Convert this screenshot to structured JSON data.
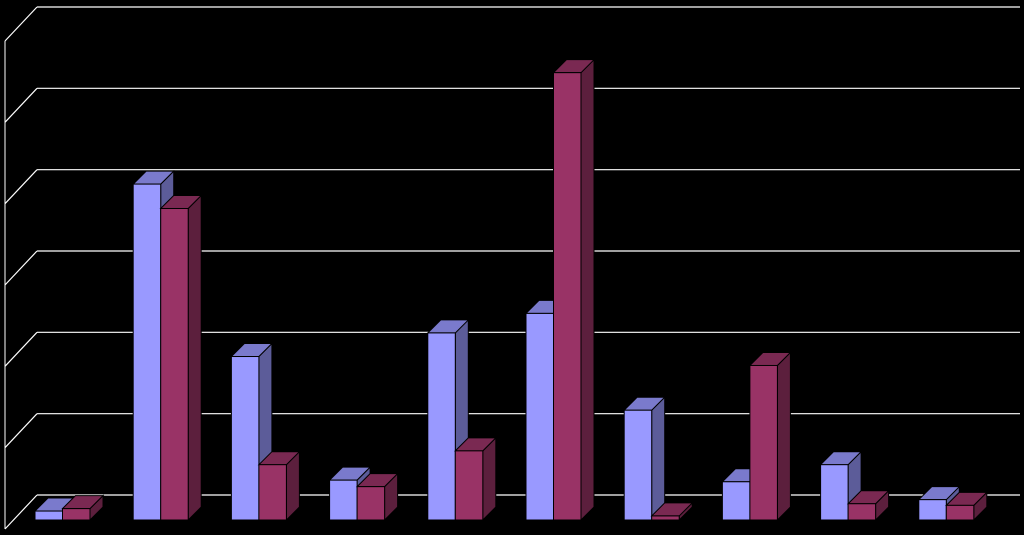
{
  "chart_data": {
    "type": "bar3d",
    "categories": [
      null,
      null,
      null,
      null,
      null,
      null,
      null,
      null,
      null,
      null
    ],
    "series": [
      {
        "color": "#9999ff",
        "values": [
          0.11,
          4.13,
          2.01,
          0.49,
          2.3,
          2.54,
          1.35,
          0.47,
          0.68,
          0.25
        ]
      },
      {
        "color": "#993366",
        "values": [
          0.14,
          3.83,
          0.68,
          0.41,
          0.85,
          5.5,
          0.05,
          1.9,
          0.2,
          0.18
        ]
      }
    ],
    "ylim": [
      0,
      6
    ],
    "yticks": [
      0,
      1,
      2,
      3,
      4,
      5,
      6
    ],
    "grid": true
  }
}
